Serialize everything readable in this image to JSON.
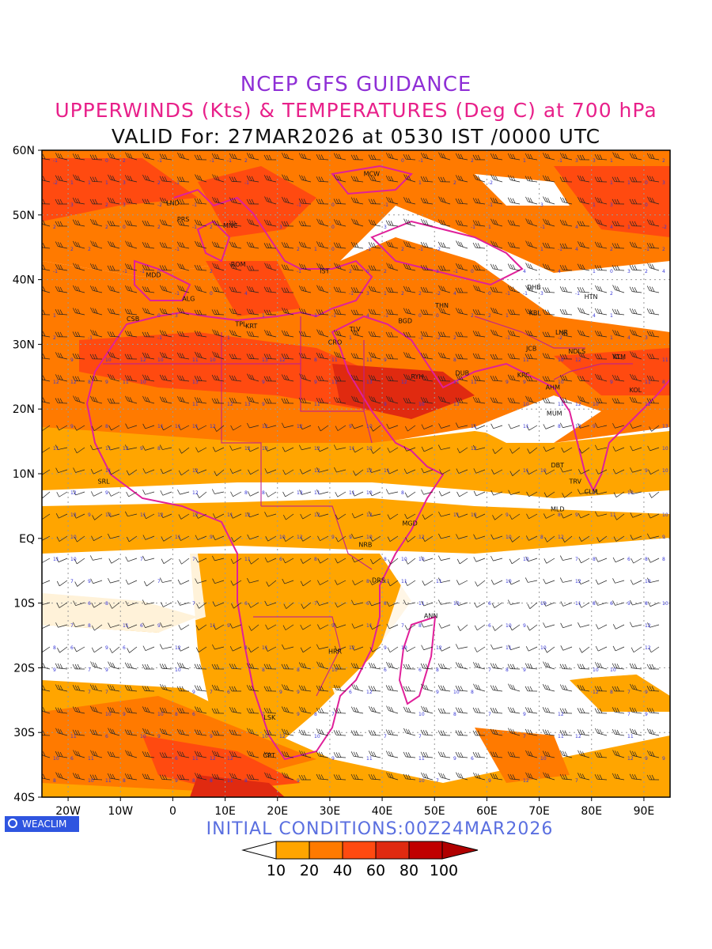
{
  "titles": {
    "line1": "NCEP GFS GUIDANCE",
    "line2": "UPPERWINDS (Kts) & TEMPERATURES (Deg C) at 700 hPa",
    "line3": "VALID For: 27MAR2026 at 0530 IST /0000 UTC"
  },
  "initial_conditions": "INITIAL CONDITIONS:00Z24MAR2026",
  "logo_text": "WEACLIM",
  "colors": {
    "shade_10_20": "#ffa500",
    "shade_20_40": "#ff7a00",
    "shade_40_60": "#ff4a10",
    "shade_60_80": "#e02a10",
    "shade_80_100": "#c00000",
    "coastline": "#e0209a",
    "temperature_digits": "#3a3ad8"
  },
  "map": {
    "lat_labels": [
      "60N",
      "50N",
      "40N",
      "30N",
      "20N",
      "10N",
      "EQ",
      "10S",
      "20S",
      "30S",
      "40S"
    ],
    "lon_labels": [
      "20W",
      "10W",
      "0",
      "10E",
      "20E",
      "30E",
      "40E",
      "50E",
      "60E",
      "70E",
      "80E",
      "90E"
    ],
    "cities": [
      {
        "name": "MCW",
        "lon": 38,
        "lat": 56
      },
      {
        "name": "LND",
        "lon": 0,
        "lat": 51.5
      },
      {
        "name": "PRS",
        "lon": 2,
        "lat": 49
      },
      {
        "name": "MNC",
        "lon": 11,
        "lat": 48
      },
      {
        "name": "ROM",
        "lon": 12.5,
        "lat": 42
      },
      {
        "name": "IST",
        "lon": 29,
        "lat": 41
      },
      {
        "name": "MDD",
        "lon": -3.7,
        "lat": 40.4
      },
      {
        "name": "ALG",
        "lon": 3,
        "lat": 36.7
      },
      {
        "name": "CSB",
        "lon": -7.6,
        "lat": 33.6
      },
      {
        "name": "TPL",
        "lon": 13,
        "lat": 32.8
      },
      {
        "name": "KRT",
        "lon": 15,
        "lat": 32.5
      },
      {
        "name": "CRO",
        "lon": 31,
        "lat": 30
      },
      {
        "name": "TLV",
        "lon": 34.8,
        "lat": 32
      },
      {
        "name": "BGD",
        "lon": 44.4,
        "lat": 33.3
      },
      {
        "name": "THN",
        "lon": 51.4,
        "lat": 35.7
      },
      {
        "name": "DHB",
        "lon": 69,
        "lat": 38.5
      },
      {
        "name": "HTN",
        "lon": 79.9,
        "lat": 37
      },
      {
        "name": "KBL",
        "lon": 69.2,
        "lat": 34.5
      },
      {
        "name": "LHR",
        "lon": 74.3,
        "lat": 31.5
      },
      {
        "name": "JCB",
        "lon": 68.5,
        "lat": 29
      },
      {
        "name": "NDLS",
        "lon": 77.2,
        "lat": 28.6
      },
      {
        "name": "KTM",
        "lon": 85.3,
        "lat": 27.7
      },
      {
        "name": "RYH",
        "lon": 46.7,
        "lat": 24.7
      },
      {
        "name": "DUB",
        "lon": 55.3,
        "lat": 25.2
      },
      {
        "name": "KRC",
        "lon": 67,
        "lat": 24.9
      },
      {
        "name": "AHM",
        "lon": 72.6,
        "lat": 23
      },
      {
        "name": "KOL",
        "lon": 88.4,
        "lat": 22.6
      },
      {
        "name": "MUM",
        "lon": 72.9,
        "lat": 19
      },
      {
        "name": "DBT",
        "lon": 73.5,
        "lat": 11
      },
      {
        "name": "SRL",
        "lon": -13.2,
        "lat": 8.5
      },
      {
        "name": "TRV",
        "lon": 76.9,
        "lat": 8.5
      },
      {
        "name": "CLM",
        "lon": 79.9,
        "lat": 6.9
      },
      {
        "name": "MLD",
        "lon": 73.5,
        "lat": 4.2
      },
      {
        "name": "MGD",
        "lon": 45.3,
        "lat": 2
      },
      {
        "name": "NRB",
        "lon": 36.8,
        "lat": -1.3
      },
      {
        "name": "DRS",
        "lon": 39.3,
        "lat": -6.8
      },
      {
        "name": "ANN",
        "lon": 49.3,
        "lat": -12.3
      },
      {
        "name": "HRR",
        "lon": 31,
        "lat": -17.8
      },
      {
        "name": "LSK",
        "lon": 18.5,
        "lat": -28
      },
      {
        "name": "CPT",
        "lon": 18.4,
        "lat": -33.9
      }
    ]
  },
  "colorbar": {
    "labels": [
      "10",
      "20",
      "40",
      "60",
      "80",
      "100"
    ]
  }
}
